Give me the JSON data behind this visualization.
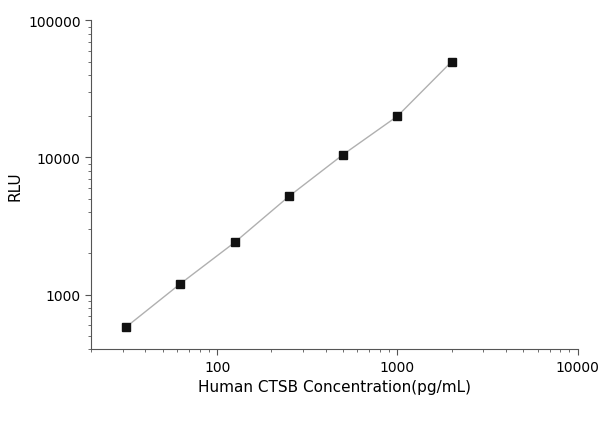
{
  "x_values": [
    31.25,
    62.5,
    125,
    250,
    500,
    1000,
    2000
  ],
  "y_values": [
    580,
    1200,
    2400,
    5200,
    10500,
    20000,
    50000
  ],
  "xlabel": "Human CTSB Concentration(pg/mL)",
  "ylabel": "RLU",
  "xlim": [
    20,
    10000
  ],
  "ylim": [
    400,
    100000
  ],
  "x_ticks_major": [
    100,
    1000,
    10000
  ],
  "y_ticks_major": [
    1000,
    10000,
    100000
  ],
  "marker": "s",
  "marker_color": "#111111",
  "line_color": "#b0b0b0",
  "marker_size": 6,
  "line_width": 1.0,
  "background_color": "#ffffff",
  "xlabel_fontsize": 11,
  "ylabel_fontsize": 11,
  "tick_labelsize": 10,
  "spine_color": "#555555",
  "spine_linewidth": 0.8
}
